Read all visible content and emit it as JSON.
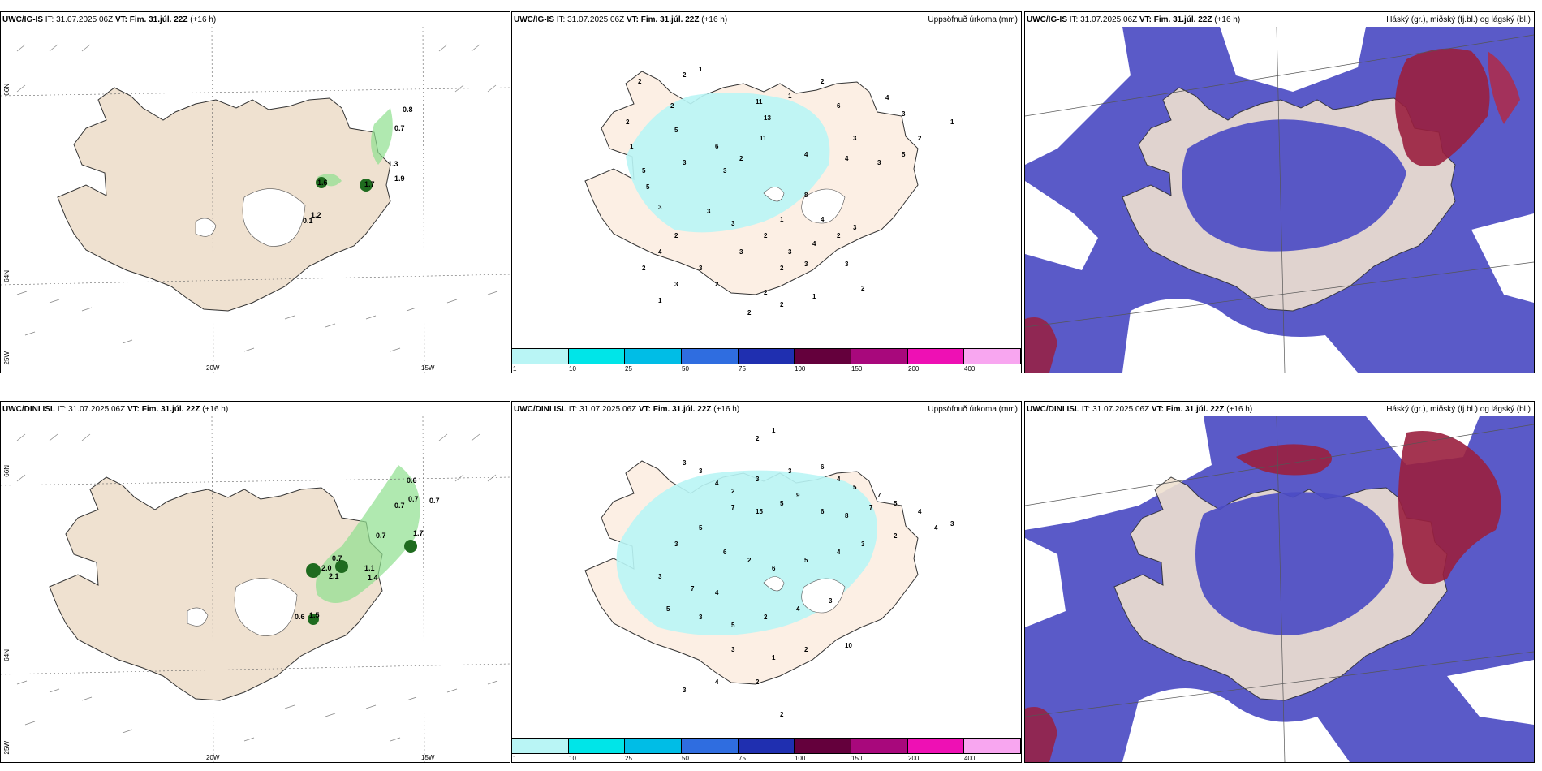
{
  "colors": {
    "land": "#efe1d0",
    "precip_light": "#b9f5f5",
    "cloud_high": "#9a1f3e",
    "cloud_mid": "#4c4cc4",
    "cloud_low": "#5fb8ee",
    "cbar": [
      "#b9f5f5",
      "#00e5e8",
      "#00bde6",
      "#2f6de0",
      "#1f2fb0",
      "#64003c",
      "#a8087c",
      "#ee10b4",
      "#f8a6f0"
    ]
  },
  "rows": [
    {
      "model": "UWC/IG-IS",
      "it_label": "IT:",
      "it_value": "31.07.2025 06Z",
      "vt_label": "VT:",
      "vt_value": "Fim. 31.júl. 22Z",
      "lead": "(+16 h)",
      "accum_title": "Uppsöfnuð úrkoma (mm)",
      "cloud_title": "Háský (gr.), miðský (fj.bl.) og lágský (bl.)",
      "wind_labels": [
        "0.8",
        "0.7",
        "1.3",
        "1.6",
        "1.7",
        "1.9",
        "1.2",
        "0.1"
      ],
      "accum_labels": [
        "2",
        "2",
        "1",
        "2",
        "11",
        "13",
        "11",
        "1",
        "2",
        "6",
        "4",
        "3",
        "3",
        "5",
        "6",
        "3",
        "3",
        "2",
        "4",
        "4",
        "3",
        "5",
        "2",
        "1",
        "1",
        "2",
        "5",
        "5",
        "3",
        "3",
        "3",
        "2",
        "4",
        "3",
        "3",
        "2",
        "1",
        "8",
        "4",
        "3",
        "4",
        "2",
        "3",
        "2",
        "3",
        "2",
        "2",
        "2",
        "3",
        "3",
        "2",
        "1",
        "2",
        "2",
        "1"
      ]
    },
    {
      "model": "UWC/DINI ISL",
      "it_label": "IT:",
      "it_value": "31.07.2025 06Z",
      "vt_label": "VT:",
      "vt_value": "Fim. 31.júl. 22Z",
      "lead": "(+16 h)",
      "accum_title": "Uppsöfnuð úrkoma (mm)",
      "cloud_title": "Háský (gr.), miðský (fj.bl.) og lágský (bl.)",
      "wind_labels": [
        "0.6",
        "0.7",
        "0.7",
        "0.7",
        "0.7",
        "0.7",
        "2.0",
        "2.1",
        "1.1",
        "1.4",
        "1.7",
        "0.6",
        "1.5"
      ],
      "accum_labels": [
        "2",
        "1",
        "3",
        "3",
        "4",
        "2",
        "3",
        "3",
        "6",
        "4",
        "5",
        "7",
        "7",
        "15",
        "5",
        "9",
        "6",
        "8",
        "7",
        "5",
        "4",
        "4",
        "3",
        "5",
        "3",
        "6",
        "2",
        "3",
        "7",
        "4",
        "6",
        "5",
        "4",
        "3",
        "2",
        "5",
        "3",
        "5",
        "2",
        "4",
        "3",
        "3",
        "1",
        "2",
        "10",
        "2",
        "4",
        "3",
        "2"
      ]
    }
  ],
  "axes": {
    "lat_top": "66N",
    "lat_bottom": "64N",
    "lat_corner": "25W",
    "lon_left": "20W",
    "lon_right": "15W"
  },
  "colorbar_ticks": [
    "1",
    "10",
    "25",
    "50",
    "75",
    "100",
    "150",
    "200",
    "400"
  ]
}
